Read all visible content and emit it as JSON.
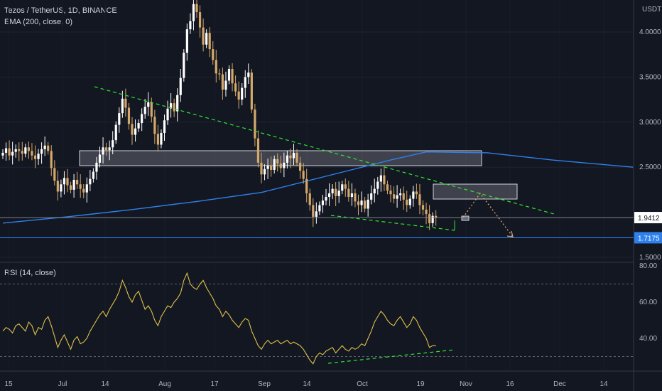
{
  "header": {
    "symbol": "Tezos / TetherUS, 1D, BINANCE",
    "ema": "EMA (200, close, 0)",
    "rsi": "RSI (14, close)",
    "currency": "USDT"
  },
  "colors": {
    "background": "#131722",
    "up_candle": "#ffffff",
    "down_candle": "#d4a86a",
    "ema": "#2f80ed",
    "trendline": "#2ee82e",
    "rsi_line": "#e0c14a",
    "projection": "#d4a86a",
    "support_line": "#2f80ed"
  },
  "chart_data": [
    {
      "type": "candlestick",
      "title": "Tezos / TetherUS, 1D, BINANCE",
      "ylabel": "USDT",
      "ylim": [
        1.45,
        4.35
      ],
      "y_ticks": [
        "4.0000",
        "3.5000",
        "3.0000",
        "2.5000",
        "1.5000"
      ],
      "x_ticks": [
        "15",
        "Jul",
        "14",
        "Aug",
        "17",
        "Sep",
        "14",
        "Oct",
        "19",
        "Nov",
        "16",
        "Dec",
        "14"
      ],
      "price_labels": {
        "last": "1.9412",
        "support": "1.7175"
      },
      "last_price": 1.9412,
      "support_level": 1.7175,
      "closes": [
        2.66,
        2.71,
        2.63,
        2.67,
        2.7,
        2.68,
        2.65,
        2.72,
        2.68,
        2.63,
        2.59,
        2.65,
        2.7,
        2.74,
        2.68,
        2.49,
        2.35,
        2.23,
        2.31,
        2.38,
        2.3,
        2.25,
        2.36,
        2.31,
        2.26,
        2.22,
        2.31,
        2.37,
        2.45,
        2.55,
        2.64,
        2.72,
        2.69,
        2.72,
        2.8,
        2.97,
        3.1,
        3.26,
        3.16,
        2.98,
        2.86,
        2.93,
        2.99,
        3.09,
        3.17,
        3.22,
        3.06,
        2.87,
        2.75,
        2.88,
        3.02,
        3.15,
        3.21,
        3.12,
        3.3,
        3.49,
        3.77,
        4.03,
        4.12,
        4.31,
        4.22,
        4.05,
        3.86,
        3.99,
        3.81,
        3.69,
        3.54,
        3.53,
        3.36,
        3.46,
        3.59,
        3.43,
        3.34,
        3.25,
        3.38,
        3.5,
        3.55,
        3.14,
        2.82,
        2.55,
        2.42,
        2.48,
        2.52,
        2.47,
        2.59,
        2.54,
        2.49,
        2.55,
        2.63,
        2.6,
        2.66,
        2.55,
        2.46,
        2.37,
        2.21,
        2.08,
        1.95,
        2.01,
        2.08,
        2.13,
        2.17,
        2.21,
        2.26,
        2.18,
        2.24,
        2.31,
        2.26,
        2.17,
        2.21,
        2.12,
        2.08,
        2.13,
        2.04,
        2.14,
        2.21,
        2.26,
        2.34,
        2.41,
        2.31,
        2.24,
        2.2,
        2.15,
        2.19,
        2.21,
        2.14,
        2.08,
        2.15,
        2.23,
        2.2,
        2.08,
        2.03,
        1.98,
        1.88,
        1.96,
        1.94
      ]
    },
    {
      "type": "line",
      "title": "EMA (200, close, 0)",
      "x_index": [
        0,
        20,
        40,
        60,
        80,
        100,
        120,
        131,
        150,
        170,
        195
      ],
      "values": [
        1.88,
        1.95,
        2.03,
        2.12,
        2.22,
        2.4,
        2.58,
        2.67,
        2.66,
        2.58,
        2.5
      ]
    },
    {
      "type": "line",
      "title": "RSI (14, close)",
      "ylim": [
        25,
        80
      ],
      "y_ticks": [
        "80.00",
        "60.00",
        "40.00"
      ],
      "levels": [
        70,
        30
      ],
      "values": [
        44,
        46,
        45,
        43,
        47,
        48,
        46,
        44,
        49,
        47,
        42,
        46,
        45,
        50,
        52,
        47,
        41,
        35,
        39,
        42,
        38,
        34,
        39,
        41,
        37,
        38,
        40,
        44,
        47,
        50,
        53,
        55,
        52,
        56,
        59,
        62,
        66,
        72,
        68,
        63,
        60,
        64,
        66,
        61,
        56,
        58,
        55,
        50,
        47,
        52,
        55,
        58,
        57,
        60,
        62,
        65,
        72,
        76,
        70,
        68,
        67,
        70,
        72,
        68,
        65,
        62,
        58,
        56,
        52,
        55,
        53,
        50,
        48,
        46,
        49,
        51,
        50,
        44,
        40,
        36,
        34,
        37,
        39,
        37,
        38,
        39,
        37,
        38,
        39,
        37,
        38,
        37,
        36,
        34,
        31,
        28,
        26,
        30,
        32,
        31,
        33,
        34,
        35,
        32,
        34,
        36,
        34,
        33,
        35,
        34,
        35,
        37,
        36,
        40,
        44,
        49,
        52,
        55,
        53,
        50,
        48,
        47,
        50,
        52,
        49,
        46,
        48,
        52,
        50,
        46,
        43,
        40,
        35,
        36,
        36
      ]
    }
  ]
}
